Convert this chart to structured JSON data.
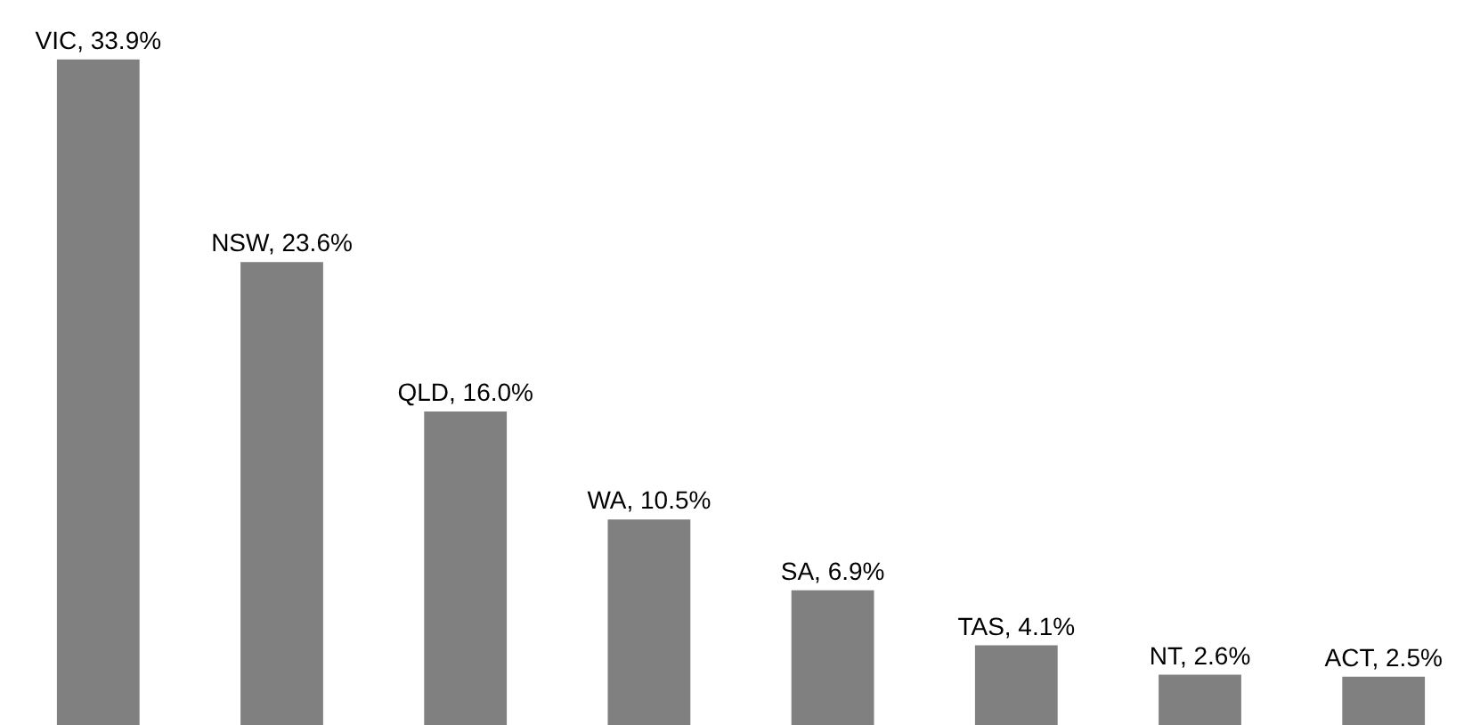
{
  "chart_data": {
    "type": "bar",
    "categories": [
      null,
      null,
      null,
      null,
      null,
      null,
      null,
      null
    ],
    "values": [
      33.9,
      23.6,
      16.0,
      10.5,
      6.9,
      4.1,
      2.6,
      2.5
    ],
    "color": "#808080",
    "value_labels": [
      "VIC, 33.9%",
      "NSW, 23.6%",
      "QLD, 16.0%",
      "WA, 10.5%",
      "SA, 6.9%",
      "TAS, 4.1%",
      "NT, 2.6%",
      "ACT, 2.5%"
    ],
    "grid": false
  }
}
